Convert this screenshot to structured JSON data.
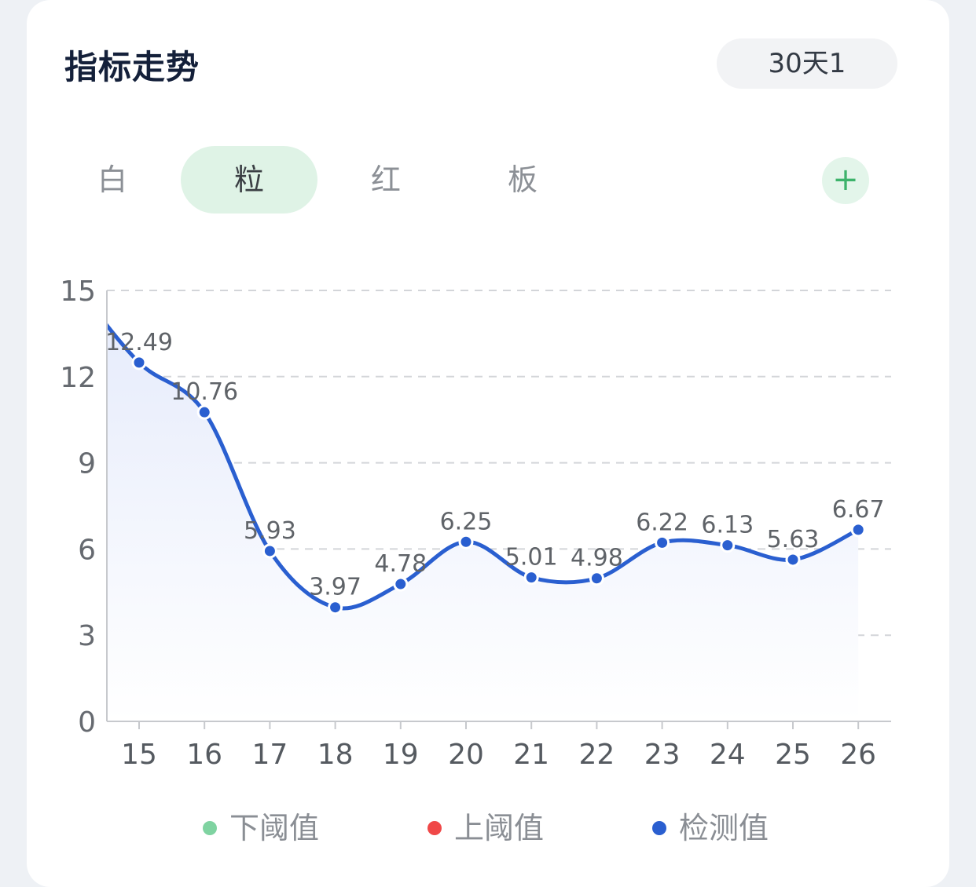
{
  "header": {
    "title": "指标走势",
    "range_label": "30天1"
  },
  "tabs": [
    {
      "label": "白",
      "active": false
    },
    {
      "label": "粒",
      "active": true
    },
    {
      "label": "红",
      "active": false
    },
    {
      "label": "板",
      "active": false
    }
  ],
  "add_label": "+",
  "colors": {
    "line": "#2a5fd0",
    "area_top": "#e4eafb",
    "lower_threshold": "#7fd3a1",
    "upper_threshold": "#f04848",
    "grid": "#d3d5d9",
    "axis": "#c7c9cd"
  },
  "chart_data": {
    "type": "line",
    "categories": [
      "15",
      "16",
      "17",
      "18",
      "19",
      "20",
      "21",
      "22",
      "23",
      "24",
      "25",
      "26"
    ],
    "series": [
      {
        "name": "检测值",
        "values": [
          12.49,
          10.76,
          5.93,
          3.97,
          4.78,
          6.25,
          5.01,
          4.98,
          6.22,
          6.13,
          5.63,
          6.67
        ]
      }
    ],
    "data_labels": [
      "12.49",
      "10.76",
      "5.93",
      "3.97",
      "4.78",
      "6.25",
      "5.01",
      "4.98",
      "6.22",
      "6.13",
      "5.63",
      "6.67"
    ],
    "y_ticks": [
      "0",
      "3",
      "6",
      "9",
      "12",
      "15"
    ],
    "ylim": [
      0,
      15
    ],
    "grid": true,
    "legend_position": "bottom",
    "legend": [
      {
        "label": "下阈值",
        "color": "#7fd3a1"
      },
      {
        "label": "上阈值",
        "color": "#f04848"
      },
      {
        "label": "检测值",
        "color": "#2a5fd0"
      }
    ]
  }
}
